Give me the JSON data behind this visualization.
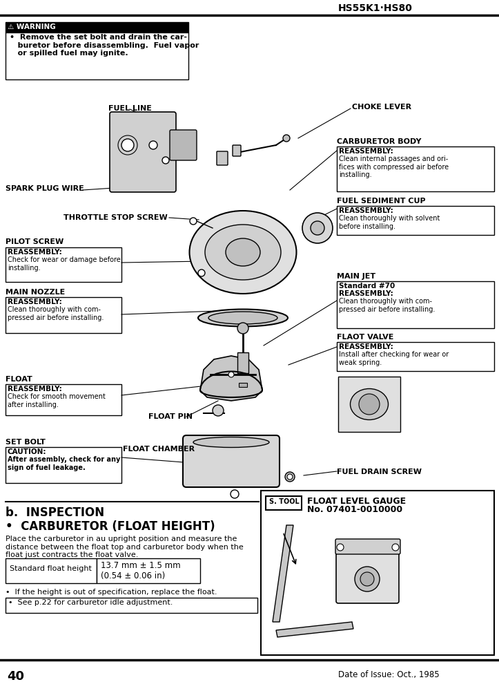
{
  "title_right": "HS55K1·HS80",
  "page_number": "40",
  "date_line": "Date of Issue: Oct., 1985",
  "bg_color": "#ffffff",
  "warning_label": "⚠ WARNING",
  "warning_body": "•  Remove the set bolt and drain the car-\n   buretor before disassembling.  Fuel vapor\n   or spilled fuel may ignite.",
  "section_title": "b.  INSPECTION",
  "section_subtitle": "•  CARBURETOR (FLOAT HEIGHT)",
  "section_body": "Place the carburetor in au upright position and measure the\ndistance between the float top and carburetor body when the\nfloat just contracts the float valve.",
  "table_col1": "Standard float height",
  "table_col2": "13.7 mm ± 1.5 mm\n(0.54 ± 0.06 in)",
  "bullet1": "•  If the height is out of specification, replace the float.",
  "bullet2": "•  See p.22 for carburetor idle adjustment.",
  "labels": {
    "fuel_line": "FUEL LINE",
    "spark_plug_wire": "SPARK PLUG WIRE",
    "throttle_stop_screw": "THROTTLE STOP SCREW",
    "choke_lever": "CHOKE LEVER",
    "carburetor_body": "CARBURETOR BODY",
    "fuel_sediment_cup": "FUEL SEDIMENT CUP",
    "pilot_screw": "PILOT SCREW",
    "main_nozzle": "MAIN NOZZLE",
    "main_jet": "MAIN JET",
    "float_valve": "FLAOT VALVE",
    "float": "FLOAT",
    "float_pin": "FLOAT PIN",
    "set_bolt": "SET BOLT",
    "float_chamber": "FLOAT CHAMBER",
    "fuel_drain_screw": "FUEL DRAIN SCREW",
    "float_level_gauge_line1": "FLOAT LEVEL GAUGE",
    "float_level_gauge_line2": "No. 07401-0010000",
    "s_tool": "S. TOOL"
  }
}
